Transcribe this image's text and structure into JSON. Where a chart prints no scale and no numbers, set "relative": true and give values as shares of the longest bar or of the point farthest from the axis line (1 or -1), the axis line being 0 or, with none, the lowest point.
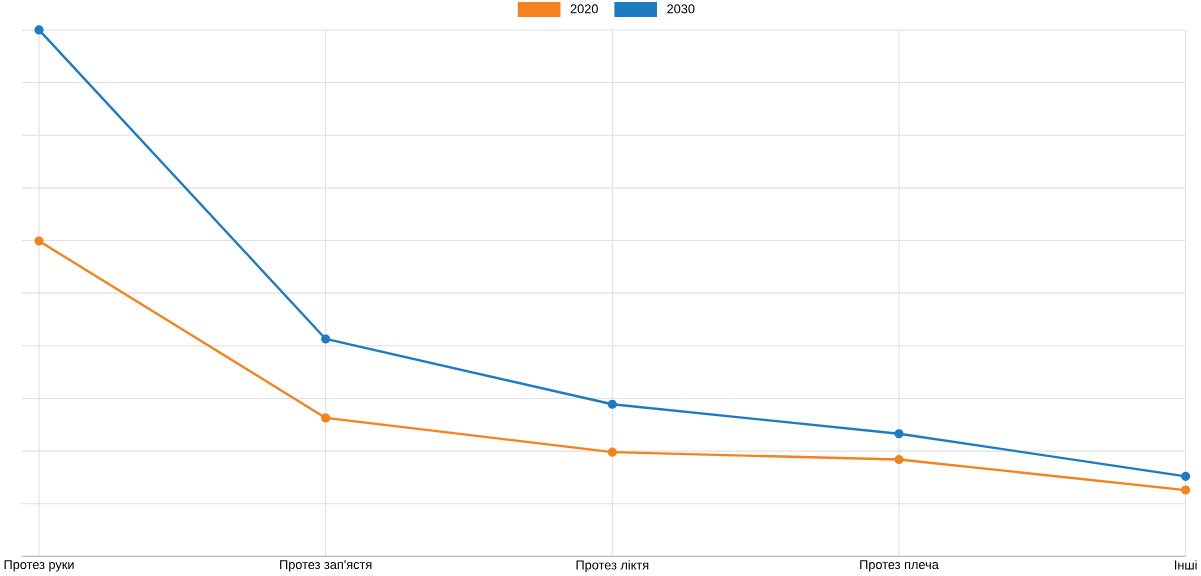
{
  "chart_data": {
    "type": "line",
    "relative": true,
    "categories": [
      "Протез руки",
      "Протез зап'ястя",
      "Протез ліктя",
      "Протез плеча",
      "Інші"
    ],
    "series": [
      {
        "name": "2020",
        "color": "#f5821f",
        "values": [
          0.599,
          0.263,
          0.198,
          0.184,
          0.126
        ]
      },
      {
        "name": "2030",
        "color": "#1f7bc1",
        "values": [
          1.0,
          0.413,
          0.289,
          0.233,
          0.152
        ]
      }
    ],
    "grid": true,
    "legend": "top",
    "marker": "circle",
    "line_style": "solid"
  }
}
